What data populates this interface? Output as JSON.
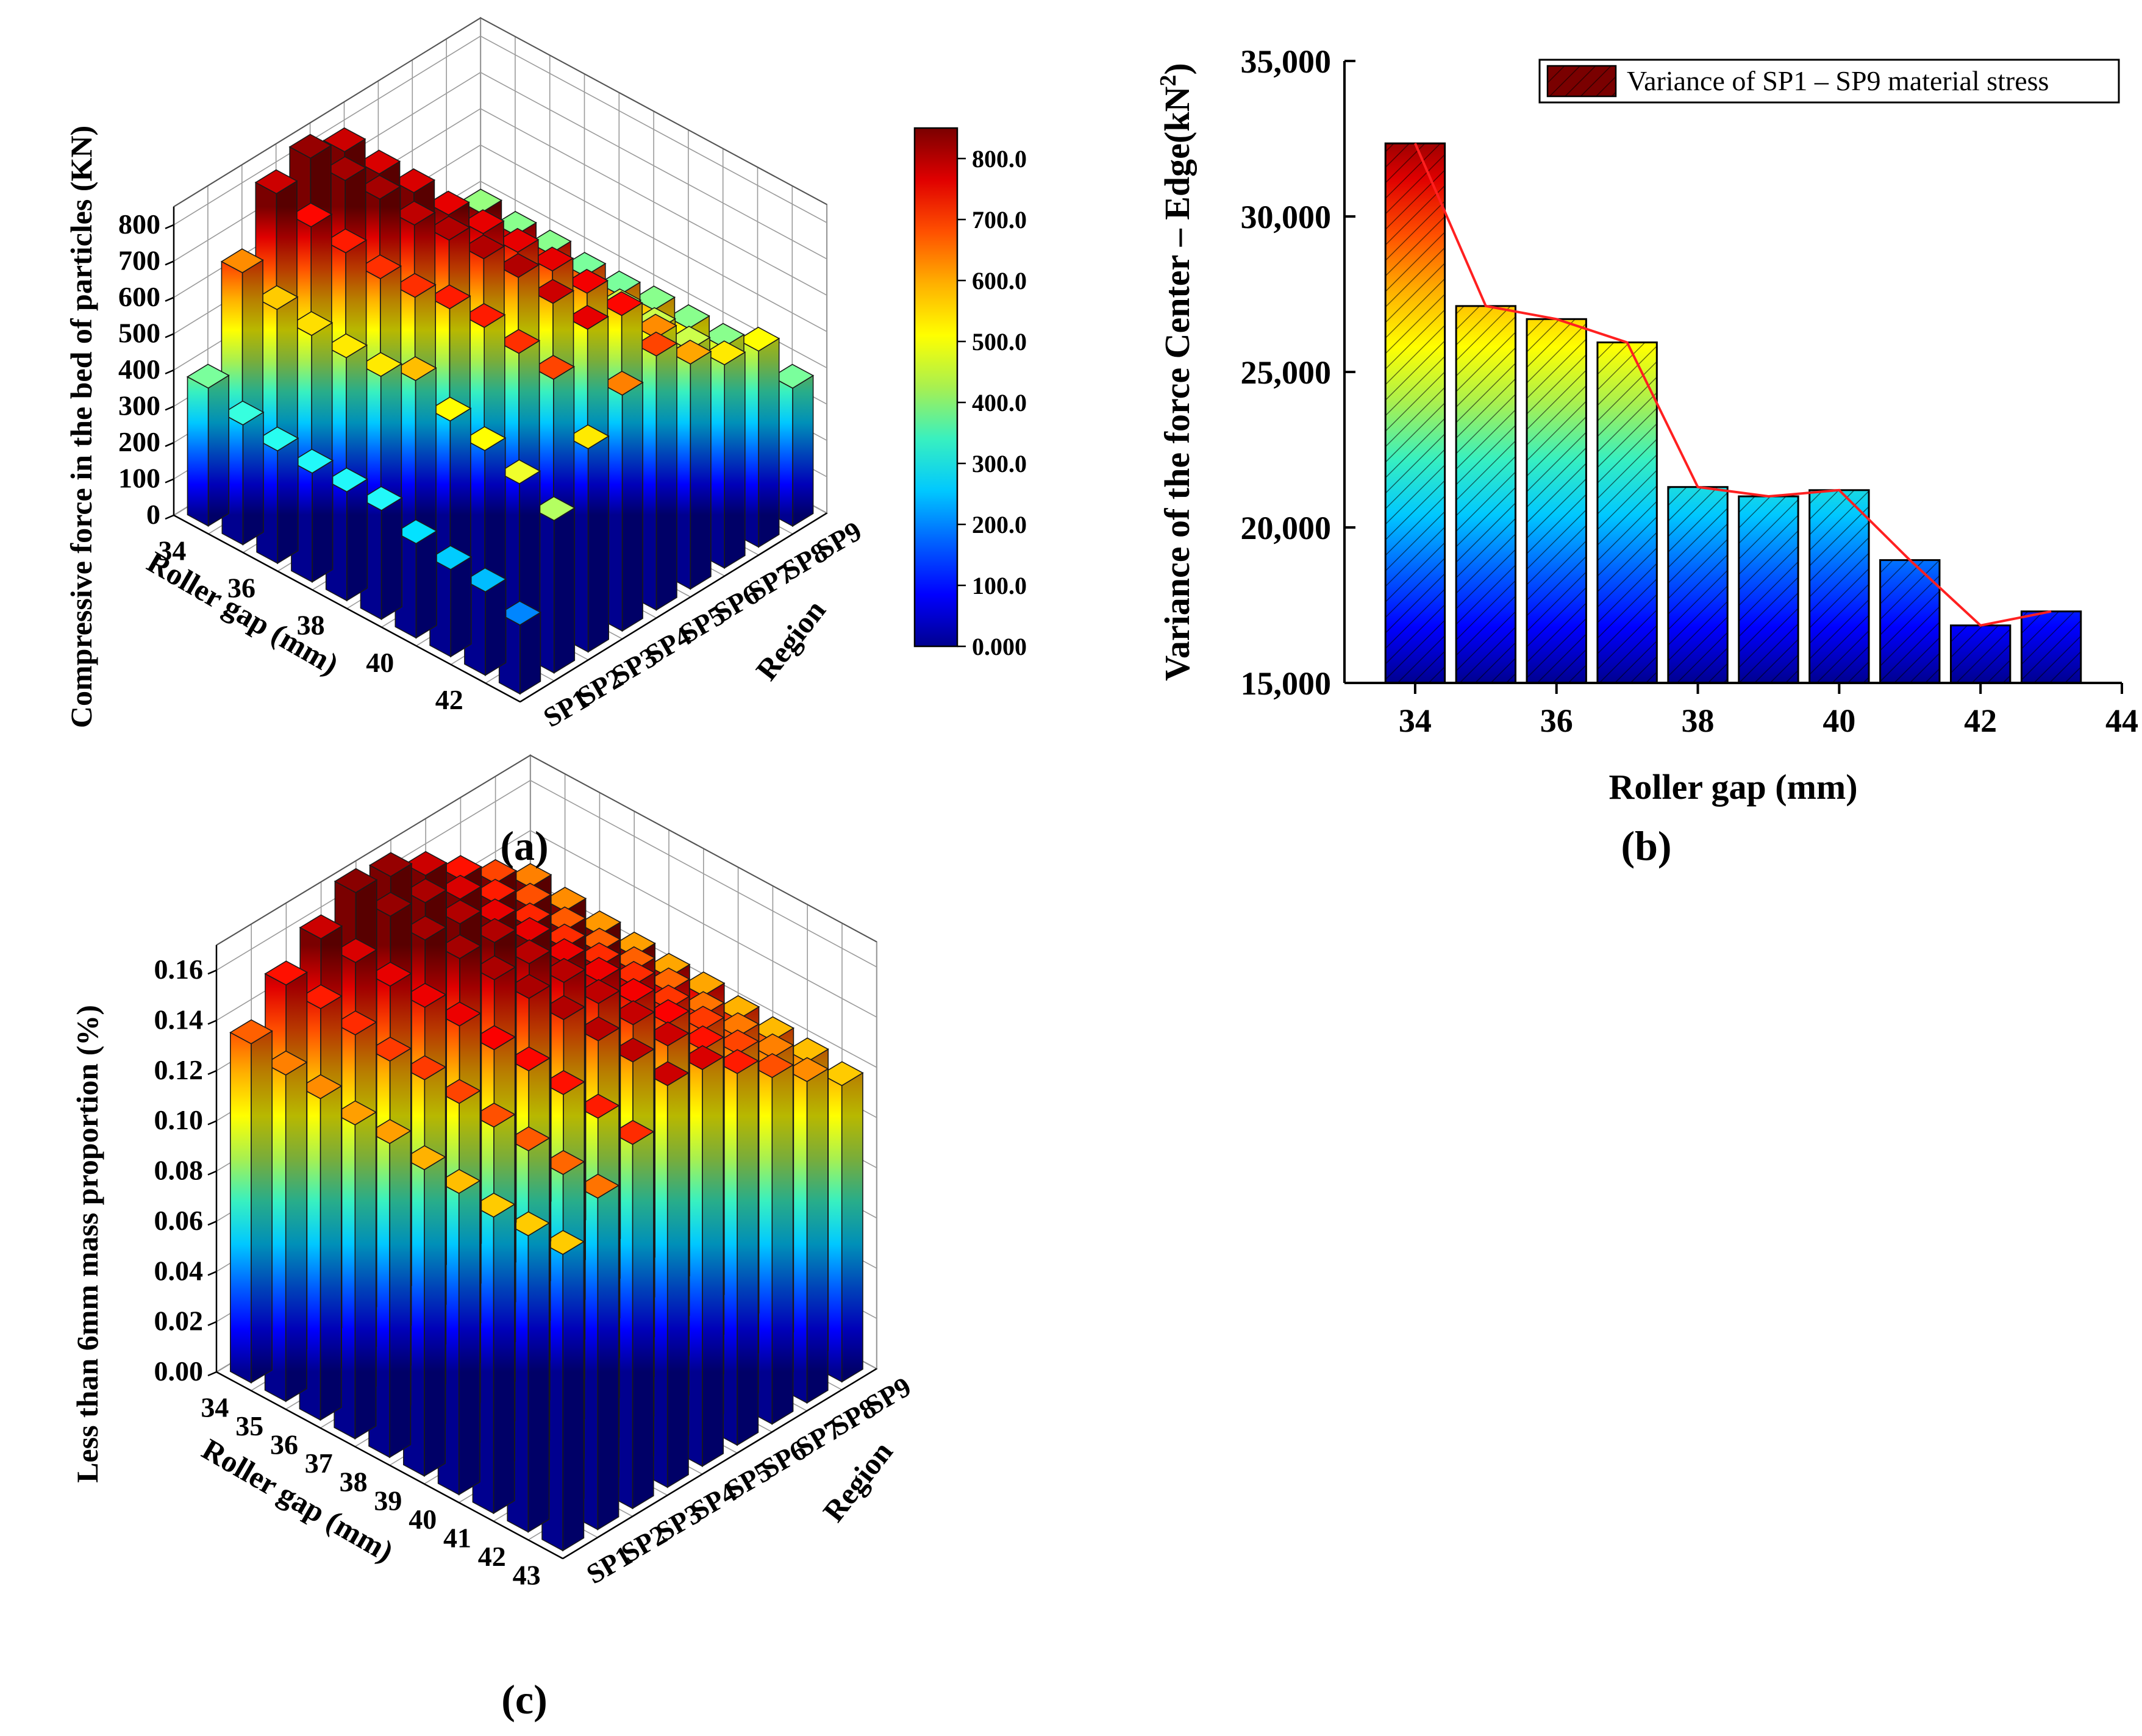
{
  "figure": {
    "panel_labels": [
      "(a)",
      "(b)",
      "(c)"
    ]
  },
  "colormap": [
    "#00008f",
    "#0000ff",
    "#0060ff",
    "#00c8ff",
    "#38f0c0",
    "#a8f050",
    "#ffff00",
    "#ffb000",
    "#ff5000",
    "#e00000",
    "#7a0000"
  ],
  "chart_data": [
    {
      "id": "a",
      "type": "bar3d",
      "zlabel": "Compressive force in the bed of particles (KN)",
      "xlabel": "Roller gap (mm)",
      "ylabel": "Region",
      "x_categories": [
        "34",
        "35",
        "36",
        "37",
        "38",
        "39",
        "40",
        "41",
        "42",
        "43"
      ],
      "x_tick_labels": [
        "34",
        "36",
        "38",
        "40",
        "42"
      ],
      "y_categories": [
        "SP1",
        "SP2",
        "SP3",
        "SP4",
        "SP5",
        "SP6",
        "SP7",
        "SP8",
        "SP9"
      ],
      "zlim": [
        0,
        850
      ],
      "z_ticks": [
        "0",
        "100",
        "200",
        "300",
        "400",
        "500",
        "600",
        "700",
        "800"
      ],
      "colorbar_ticks": [
        "0.000",
        "100.0",
        "200.0",
        "300.0",
        "400.0",
        "500.0",
        "600.0",
        "700.0",
        "800.0"
      ],
      "colorbar_range": [
        0,
        850
      ],
      "values": [
        [
          380,
          640,
          800,
          840,
          800,
          650,
          520,
          450,
          400
        ],
        [
          330,
          590,
          760,
          830,
          790,
          640,
          510,
          440,
          390
        ],
        [
          310,
          570,
          740,
          830,
          790,
          640,
          510,
          440,
          390
        ],
        [
          300,
          560,
          720,
          810,
          780,
          630,
          500,
          430,
          380
        ],
        [
          300,
          560,
          720,
          820,
          780,
          630,
          500,
          430,
          380
        ],
        [
          300,
          600,
          740,
          820,
          780,
          640,
          510,
          440,
          390
        ],
        [
          260,
          540,
          740,
          820,
          780,
          640,
          510,
          440,
          390
        ],
        [
          240,
          510,
          720,
          800,
          770,
          640,
          510,
          440,
          390
        ],
        [
          230,
          470,
          700,
          780,
          760,
          640,
          510,
          440,
          390
        ],
        [
          190,
          420,
          560,
          650,
          700,
          620,
          560,
          540,
          380
        ]
      ]
    },
    {
      "id": "b",
      "type": "bar",
      "xlabel": "Roller gap (mm)",
      "ylabel_main": "Variance of the force Center – Edge(kN",
      "ylabel_sup": "2",
      "ylabel_close": ")",
      "legend": "Variance of SP1 – SP9 material stress",
      "legend_position": "top-right",
      "categories": [
        34,
        35,
        36,
        37,
        38,
        39,
        40,
        41,
        42,
        43
      ],
      "values": [
        32350,
        27120,
        26700,
        25950,
        21300,
        21000,
        21200,
        18950,
        16850,
        17300
      ],
      "xlim": [
        33,
        44
      ],
      "ylim": [
        15000,
        35000
      ],
      "x_ticks": [
        "34",
        "36",
        "38",
        "40",
        "42",
        "44"
      ],
      "y_ticks": [
        "15,000",
        "20,000",
        "25,000",
        "30,000",
        "35,000"
      ],
      "line_color": "#ff2020"
    },
    {
      "id": "c",
      "type": "bar3d",
      "zlabel": "Less than 6mm mass proportion (%)",
      "xlabel": "Roller gap (mm)",
      "ylabel": "Region",
      "x_categories": [
        "34",
        "35",
        "36",
        "37",
        "38",
        "39",
        "40",
        "41",
        "42",
        "43"
      ],
      "x_tick_labels": [
        "34",
        "35",
        "36",
        "37",
        "38",
        "39",
        "40",
        "41",
        "42",
        "43"
      ],
      "y_categories": [
        "SP1",
        "SP2",
        "SP3",
        "SP4",
        "SP5",
        "SP6",
        "SP7",
        "SP8",
        "SP9"
      ],
      "zlim": [
        0,
        0.17
      ],
      "z_ticks": [
        "0.00",
        "0.02",
        "0.04",
        "0.06",
        "0.08",
        "0.10",
        "0.12",
        "0.14",
        "0.16"
      ],
      "values": [
        [
          0.135,
          0.15,
          0.16,
          0.17,
          0.168,
          0.16,
          0.15,
          0.14,
          0.13
        ],
        [
          0.13,
          0.148,
          0.158,
          0.168,
          0.165,
          0.158,
          0.148,
          0.138,
          0.128
        ],
        [
          0.128,
          0.145,
          0.156,
          0.166,
          0.164,
          0.156,
          0.146,
          0.136,
          0.126
        ],
        [
          0.125,
          0.142,
          0.155,
          0.166,
          0.164,
          0.156,
          0.145,
          0.135,
          0.125
        ],
        [
          0.125,
          0.142,
          0.155,
          0.165,
          0.163,
          0.155,
          0.145,
          0.135,
          0.124
        ],
        [
          0.122,
          0.14,
          0.153,
          0.165,
          0.163,
          0.155,
          0.145,
          0.134,
          0.124
        ],
        [
          0.12,
          0.138,
          0.152,
          0.164,
          0.162,
          0.154,
          0.143,
          0.132,
          0.122
        ],
        [
          0.118,
          0.136,
          0.15,
          0.163,
          0.161,
          0.153,
          0.142,
          0.131,
          0.121
        ],
        [
          0.118,
          0.134,
          0.148,
          0.162,
          0.16,
          0.15,
          0.14,
          0.13,
          0.12
        ],
        [
          0.118,
          0.132,
          0.145,
          0.16,
          0.158,
          0.148,
          0.138,
          0.128,
          0.118
        ]
      ]
    }
  ]
}
